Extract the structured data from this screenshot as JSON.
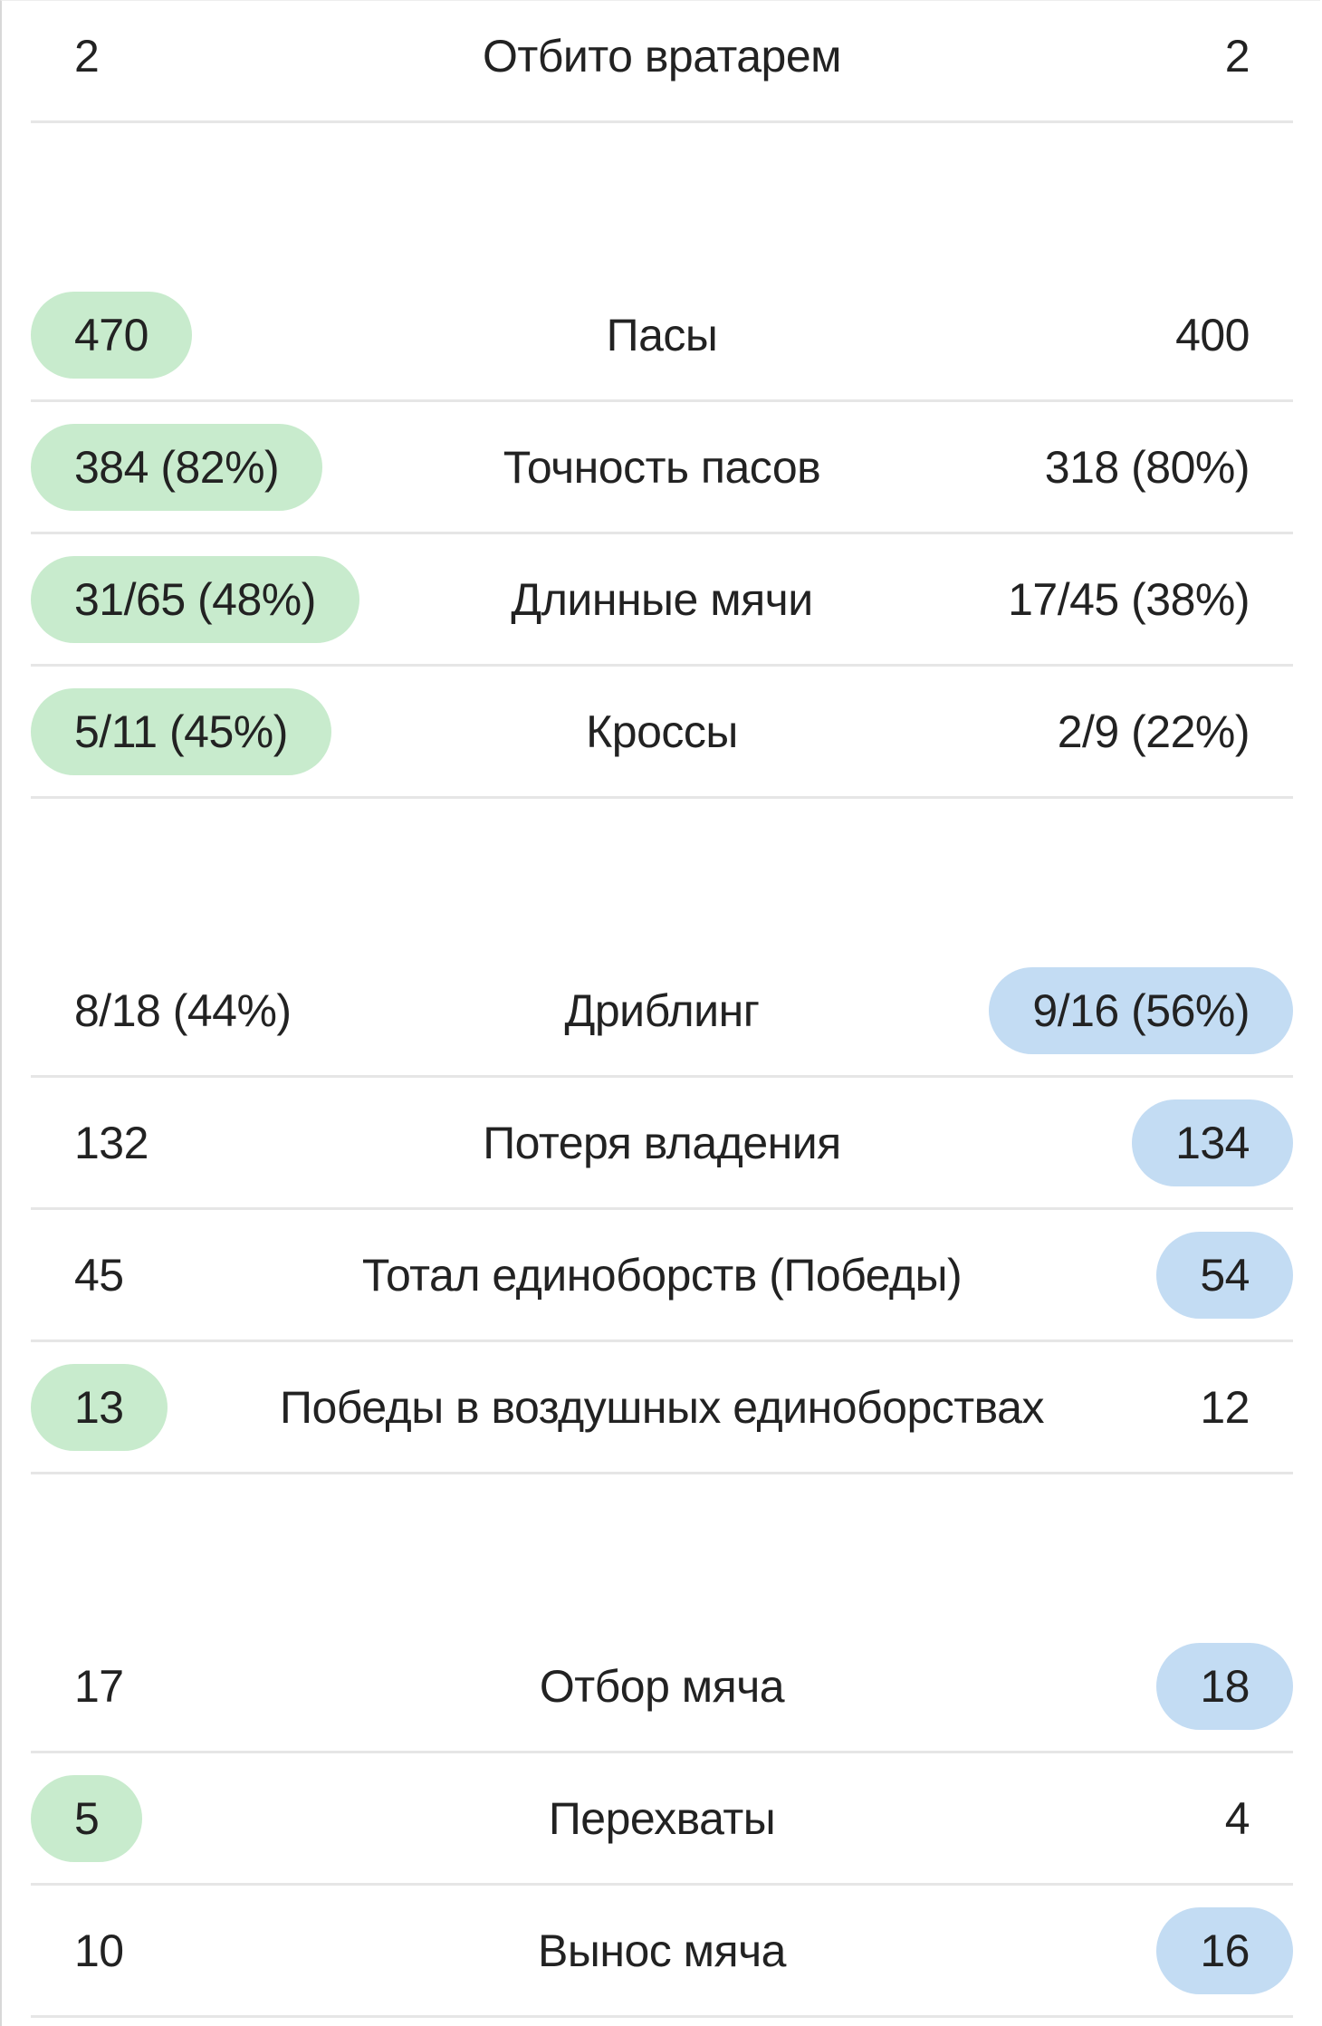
{
  "groups": [
    {
      "rows": [
        {
          "home": "2",
          "label": "Отбито вратарем",
          "away": "2",
          "highlight": "none"
        }
      ]
    },
    {
      "rows": [
        {
          "home": "470",
          "label": "Пасы",
          "away": "400",
          "highlight": "home"
        },
        {
          "home": "384 (82%)",
          "label": "Точность пасов",
          "away": "318 (80%)",
          "highlight": "home"
        },
        {
          "home": "31/65 (48%)",
          "label": "Длинные мячи",
          "away": "17/45 (38%)",
          "highlight": "home"
        },
        {
          "home": "5/11 (45%)",
          "label": "Кроссы",
          "away": "2/9 (22%)",
          "highlight": "home"
        }
      ]
    },
    {
      "rows": [
        {
          "home": "8/18 (44%)",
          "label": "Дриблинг",
          "away": "9/16 (56%)",
          "highlight": "away"
        },
        {
          "home": "132",
          "label": "Потеря владения",
          "away": "134",
          "highlight": "away"
        },
        {
          "home": "45",
          "label": "Тотал единоборств (Победы)",
          "away": "54",
          "highlight": "away"
        },
        {
          "home": "13",
          "label": "Победы в воздушных единоборствах",
          "away": "12",
          "highlight": "home"
        }
      ]
    },
    {
      "rows": [
        {
          "home": "17",
          "label": "Отбор мяча",
          "away": "18",
          "highlight": "away"
        },
        {
          "home": "5",
          "label": "Перехваты",
          "away": "4",
          "highlight": "home"
        },
        {
          "home": "10",
          "label": "Вынос мяча",
          "away": "16",
          "highlight": "away"
        }
      ]
    }
  ],
  "colors": {
    "home_highlight": "#c8ebcd",
    "away_highlight": "#c3dcf3",
    "divider": "#e6e6e6"
  }
}
